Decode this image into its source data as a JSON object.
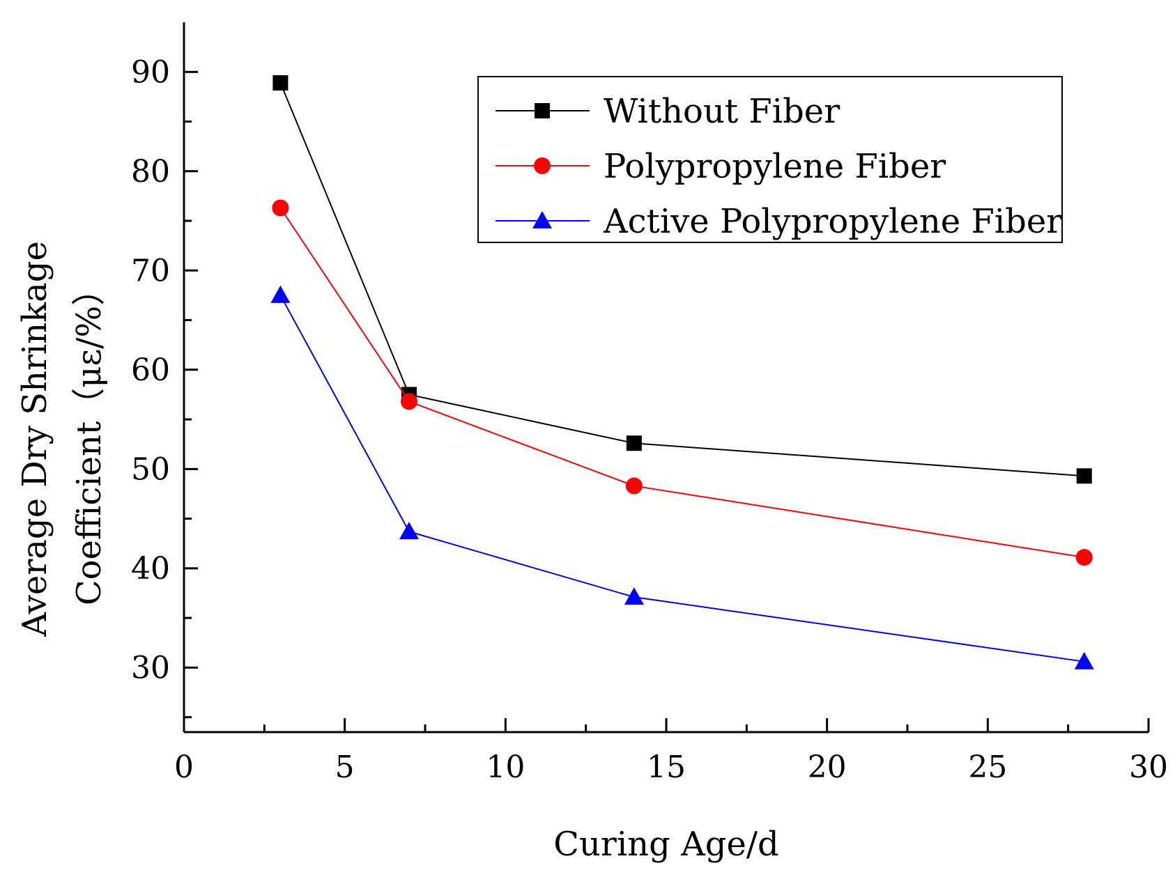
{
  "chart_data": {
    "type": "line",
    "title": "",
    "xlabel": "Curing Age/d",
    "ylabel_line1": "Average Dry Shrinkage",
    "ylabel_line2": "Coefficient（με/%）",
    "xlim": [
      0,
      30
    ],
    "ylim": [
      23.5,
      95
    ],
    "xticks": [
      0,
      5,
      10,
      15,
      20,
      25,
      30
    ],
    "yticks": [
      30,
      40,
      50,
      60,
      70,
      80,
      90
    ],
    "legend_position": "top-right",
    "grid": false,
    "x": [
      3,
      7,
      14,
      28
    ],
    "series": [
      {
        "name": "Without Fiber",
        "values": [
          88.9,
          57.5,
          52.6,
          49.3
        ],
        "color": "#000000",
        "marker": "square"
      },
      {
        "name": "Polypropylene Fiber",
        "values": [
          76.3,
          56.8,
          48.3,
          41.1
        ],
        "color": "#ff0000",
        "marker": "circle"
      },
      {
        "name": "Active Polypropylene Fiber",
        "values": [
          67.5,
          43.7,
          37.1,
          30.6
        ],
        "color": "#0000ff",
        "marker": "triangle"
      }
    ]
  }
}
